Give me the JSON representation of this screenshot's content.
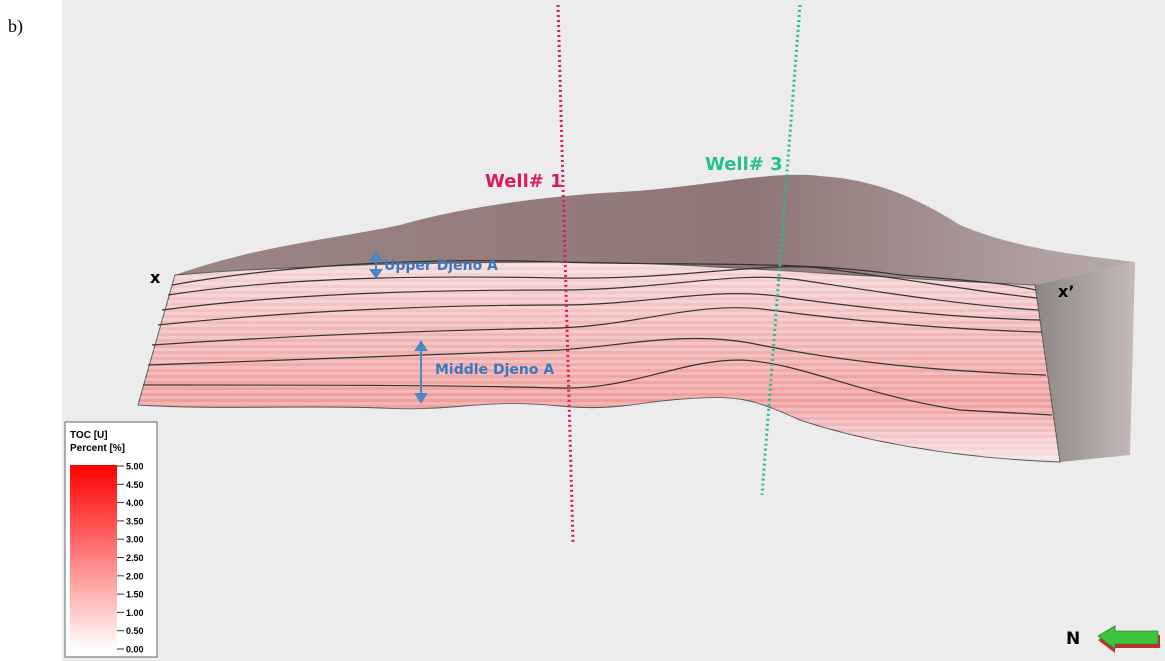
{
  "panel_label": "b)",
  "wells": [
    {
      "label": "Well# 1"
    },
    {
      "label": "Well# 3"
    }
  ],
  "section_ends": {
    "start": "x",
    "end": "x’"
  },
  "zones": [
    {
      "label": "Upper Djeno A"
    },
    {
      "label": "Middle Djeno A"
    }
  ],
  "legend": {
    "title": "TOC [U]",
    "subtitle": "Percent [%]",
    "ticks": [
      "5.00",
      "4.50",
      "4.00",
      "3.50",
      "3.00",
      "2.50",
      "2.00",
      "1.50",
      "1.00",
      "0.50",
      "0.00"
    ]
  },
  "compass": "N"
}
